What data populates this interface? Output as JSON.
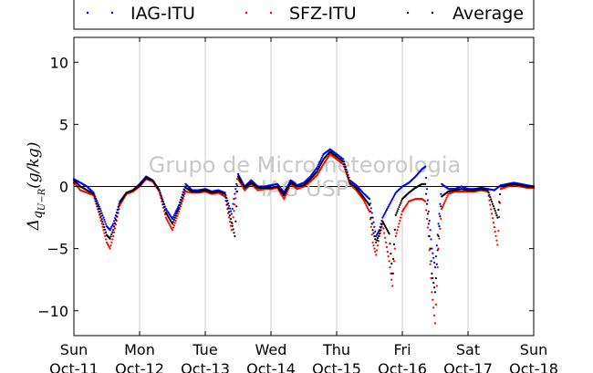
{
  "chart_data": {
    "type": "scatter",
    "ylabel": "Δq_{U−R}(g/kg)",
    "ylabel_main": "Δ",
    "ylabel_sub": "q",
    "ylabel_subsub": "U−R",
    "ylabel_unit": "(g/kg)",
    "ylim": [
      -12,
      12
    ],
    "yticks": [
      10,
      5,
      0,
      -5,
      -10
    ],
    "ytick_labels": [
      "10",
      "5",
      "0",
      "−5",
      "−10"
    ],
    "xlim": [
      0,
      7
    ],
    "x_unit": "days since Sun Oct-11 00:00",
    "x_ticks": [
      {
        "day": "Sun",
        "date": "Oct-11"
      },
      {
        "day": "Mon",
        "date": "Oct-12"
      },
      {
        "day": "Tue",
        "date": "Oct-13"
      },
      {
        "day": "Wed",
        "date": "Oct-14"
      },
      {
        "day": "Thu",
        "date": "Oct-15"
      },
      {
        "day": "Fri",
        "date": "Oct-16"
      },
      {
        "day": "Sat",
        "date": "Oct-17"
      },
      {
        "day": "Sun",
        "date": "Oct-18"
      }
    ],
    "grid": "vertical",
    "zero_line": true,
    "legend_position": "top, above plot",
    "watermark_line1": "Grupo de Micrometeorologia",
    "watermark_line2": "IAG USP",
    "series": [
      {
        "name": "IAG-ITU",
        "color": "#0000ff",
        "points": [
          [
            0.0,
            0.6
          ],
          [
            0.1,
            0.3
          ],
          [
            0.2,
            0.0
          ],
          [
            0.3,
            -0.5
          ],
          [
            0.4,
            -1.8
          ],
          [
            0.5,
            -3.2
          ],
          [
            0.55,
            -3.5
          ],
          [
            0.6,
            -3.0
          ],
          [
            0.7,
            -1.2
          ],
          [
            0.8,
            -0.5
          ],
          [
            0.9,
            -0.3
          ],
          [
            1.0,
            0.2
          ],
          [
            1.1,
            0.8
          ],
          [
            1.2,
            0.5
          ],
          [
            1.3,
            -0.3
          ],
          [
            1.4,
            -1.8
          ],
          [
            1.5,
            -2.6
          ],
          [
            1.6,
            -1.5
          ],
          [
            1.7,
            0.2
          ],
          [
            1.8,
            -0.3
          ],
          [
            1.9,
            -0.3
          ],
          [
            2.0,
            -0.2
          ],
          [
            2.1,
            -0.4
          ],
          [
            2.2,
            -0.3
          ],
          [
            2.3,
            -0.5
          ],
          [
            2.4,
            -2.2
          ],
          [
            2.5,
            1.0
          ],
          [
            2.6,
            0.0
          ],
          [
            2.7,
            0.5
          ],
          [
            2.8,
            0.0
          ],
          [
            2.9,
            0.0
          ],
          [
            3.0,
            0.1
          ],
          [
            3.1,
            0.2
          ],
          [
            3.2,
            -0.5
          ],
          [
            3.3,
            0.5
          ],
          [
            3.4,
            0.1
          ],
          [
            3.5,
            0.3
          ],
          [
            3.6,
            0.8
          ],
          [
            3.7,
            1.5
          ],
          [
            3.8,
            2.6
          ],
          [
            3.9,
            3.0
          ],
          [
            4.0,
            2.6
          ],
          [
            4.1,
            2.2
          ],
          [
            4.2,
            0.5
          ],
          [
            4.3,
            0.1
          ],
          [
            4.4,
            -0.5
          ],
          [
            4.5,
            -1.0
          ],
          [
            4.55,
            -2.5
          ],
          [
            4.6,
            -4.0
          ],
          [
            4.65,
            -3.5
          ],
          [
            4.7,
            -2.5
          ],
          [
            4.8,
            -1.5
          ],
          [
            4.9,
            -0.5
          ],
          [
            5.0,
            0.0
          ],
          [
            5.1,
            0.3
          ],
          [
            5.2,
            0.8
          ],
          [
            5.3,
            1.4
          ],
          [
            5.35,
            1.6
          ],
          [
            5.4,
            -2.0
          ],
          [
            5.45,
            -5.0
          ],
          [
            5.5,
            -6.5
          ],
          [
            5.55,
            -3.0
          ],
          [
            5.6,
            0.2
          ],
          [
            5.7,
            -0.2
          ],
          [
            5.8,
            -0.2
          ],
          [
            5.9,
            0.0
          ],
          [
            6.0,
            -0.2
          ],
          [
            6.1,
            -0.2
          ],
          [
            6.2,
            -0.1
          ],
          [
            6.3,
            -0.2
          ],
          [
            6.4,
            -0.3
          ],
          [
            6.5,
            0.1
          ],
          [
            6.6,
            0.2
          ],
          [
            6.7,
            0.3
          ],
          [
            6.8,
            0.2
          ],
          [
            6.9,
            0.1
          ],
          [
            7.0,
            0.0
          ]
        ]
      },
      {
        "name": "SFZ-ITU",
        "color": "#ff0000",
        "points": [
          [
            0.0,
            0.3
          ],
          [
            0.1,
            -0.3
          ],
          [
            0.2,
            -0.5
          ],
          [
            0.3,
            -0.7
          ],
          [
            0.4,
            -2.5
          ],
          [
            0.5,
            -4.5
          ],
          [
            0.55,
            -5.0
          ],
          [
            0.6,
            -4.0
          ],
          [
            0.7,
            -1.5
          ],
          [
            0.8,
            -0.6
          ],
          [
            0.9,
            -0.4
          ],
          [
            1.0,
            0.0
          ],
          [
            1.1,
            0.6
          ],
          [
            1.2,
            0.4
          ],
          [
            1.3,
            -0.4
          ],
          [
            1.4,
            -2.5
          ],
          [
            1.5,
            -3.5
          ],
          [
            1.6,
            -2.0
          ],
          [
            1.7,
            -0.4
          ],
          [
            1.8,
            -0.5
          ],
          [
            1.9,
            -0.5
          ],
          [
            2.0,
            -0.4
          ],
          [
            2.1,
            -0.6
          ],
          [
            2.2,
            -0.5
          ],
          [
            2.3,
            -0.8
          ],
          [
            2.4,
            -3.5
          ],
          [
            2.5,
            0.6
          ],
          [
            2.6,
            -0.3
          ],
          [
            2.7,
            0.2
          ],
          [
            2.8,
            -0.3
          ],
          [
            2.9,
            -0.2
          ],
          [
            3.0,
            -0.2
          ],
          [
            3.1,
            -0.1
          ],
          [
            3.2,
            -1.0
          ],
          [
            3.3,
            0.2
          ],
          [
            3.4,
            -0.2
          ],
          [
            3.5,
            0.0
          ],
          [
            3.6,
            0.4
          ],
          [
            3.7,
            0.9
          ],
          [
            3.8,
            1.8
          ],
          [
            3.9,
            2.6
          ],
          [
            4.0,
            2.2
          ],
          [
            4.1,
            1.8
          ],
          [
            4.2,
            0.2
          ],
          [
            4.3,
            -0.3
          ],
          [
            4.4,
            -1.0
          ],
          [
            4.5,
            -2.0
          ],
          [
            4.55,
            -4.5
          ],
          [
            4.6,
            -5.5
          ],
          [
            4.65,
            -4.0
          ],
          [
            4.7,
            -3.0
          ],
          [
            4.8,
            -6.0
          ],
          [
            4.85,
            -8.0
          ],
          [
            4.9,
            -4.0
          ],
          [
            5.0,
            -2.0
          ],
          [
            5.1,
            -1.2
          ],
          [
            5.2,
            -1.0
          ],
          [
            5.3,
            -1.0
          ],
          [
            5.35,
            -1.2
          ],
          [
            5.4,
            -4.0
          ],
          [
            5.45,
            -8.5
          ],
          [
            5.5,
            -11.0
          ],
          [
            5.55,
            -5.0
          ],
          [
            5.6,
            -1.8
          ],
          [
            5.7,
            -0.6
          ],
          [
            5.8,
            -0.4
          ],
          [
            5.9,
            -0.4
          ],
          [
            6.0,
            -0.4
          ],
          [
            6.1,
            -0.4
          ],
          [
            6.2,
            -0.3
          ],
          [
            6.3,
            -0.4
          ],
          [
            6.45,
            -4.7
          ],
          [
            6.5,
            -0.2
          ],
          [
            6.6,
            0.0
          ],
          [
            6.7,
            0.1
          ],
          [
            6.8,
            0.0
          ],
          [
            6.9,
            -0.1
          ],
          [
            7.0,
            -0.1
          ]
        ]
      },
      {
        "name": "Average",
        "color": "#000000",
        "points": [
          [
            0.0,
            0.5
          ],
          [
            0.1,
            0.0
          ],
          [
            0.2,
            -0.3
          ],
          [
            0.3,
            -0.6
          ],
          [
            0.4,
            -2.2
          ],
          [
            0.5,
            -3.9
          ],
          [
            0.55,
            -4.2
          ],
          [
            0.6,
            -3.5
          ],
          [
            0.7,
            -1.3
          ],
          [
            0.8,
            -0.5
          ],
          [
            0.9,
            -0.3
          ],
          [
            1.0,
            0.1
          ],
          [
            1.1,
            0.7
          ],
          [
            1.2,
            0.5
          ],
          [
            1.3,
            -0.3
          ],
          [
            1.4,
            -2.1
          ],
          [
            1.5,
            -3.0
          ],
          [
            1.6,
            -1.7
          ],
          [
            1.7,
            -0.1
          ],
          [
            1.8,
            -0.4
          ],
          [
            1.9,
            -0.4
          ],
          [
            2.0,
            -0.3
          ],
          [
            2.1,
            -0.5
          ],
          [
            2.2,
            -0.4
          ],
          [
            2.3,
            -0.6
          ],
          [
            2.4,
            -2.9
          ],
          [
            2.45,
            -4.0
          ],
          [
            2.5,
            0.8
          ],
          [
            2.6,
            -0.1
          ],
          [
            2.7,
            0.3
          ],
          [
            2.8,
            -0.1
          ],
          [
            2.9,
            -0.1
          ],
          [
            3.0,
            -0.1
          ],
          [
            3.1,
            0.0
          ],
          [
            3.2,
            -0.7
          ],
          [
            3.3,
            0.3
          ],
          [
            3.4,
            0.0
          ],
          [
            3.5,
            0.1
          ],
          [
            3.6,
            0.6
          ],
          [
            3.7,
            1.2
          ],
          [
            3.8,
            2.2
          ],
          [
            3.9,
            2.8
          ],
          [
            4.0,
            2.4
          ],
          [
            4.1,
            2.0
          ],
          [
            4.2,
            0.3
          ],
          [
            4.3,
            -0.1
          ],
          [
            4.4,
            -0.8
          ],
          [
            4.5,
            -1.5
          ],
          [
            4.55,
            -3.5
          ],
          [
            4.6,
            -4.5
          ],
          [
            4.65,
            -3.8
          ],
          [
            4.7,
            -2.8
          ],
          [
            4.8,
            -3.8
          ],
          [
            4.85,
            -7.0
          ],
          [
            4.9,
            -2.3
          ],
          [
            5.0,
            -1.0
          ],
          [
            5.1,
            -0.5
          ],
          [
            5.2,
            -0.1
          ],
          [
            5.3,
            0.2
          ],
          [
            5.35,
            0.2
          ],
          [
            5.4,
            -3.0
          ],
          [
            5.45,
            -7.0
          ],
          [
            5.5,
            -8.5
          ],
          [
            5.55,
            -4.0
          ],
          [
            5.6,
            -0.8
          ],
          [
            5.7,
            -0.4
          ],
          [
            5.8,
            -0.3
          ],
          [
            5.9,
            -0.2
          ],
          [
            6.0,
            -0.3
          ],
          [
            6.1,
            -0.3
          ],
          [
            6.2,
            -0.2
          ],
          [
            6.3,
            -0.3
          ],
          [
            6.45,
            -2.5
          ],
          [
            6.5,
            0.0
          ],
          [
            6.6,
            0.1
          ],
          [
            6.7,
            0.2
          ],
          [
            6.8,
            0.1
          ],
          [
            6.9,
            0.0
          ],
          [
            7.0,
            0.0
          ]
        ]
      }
    ]
  }
}
